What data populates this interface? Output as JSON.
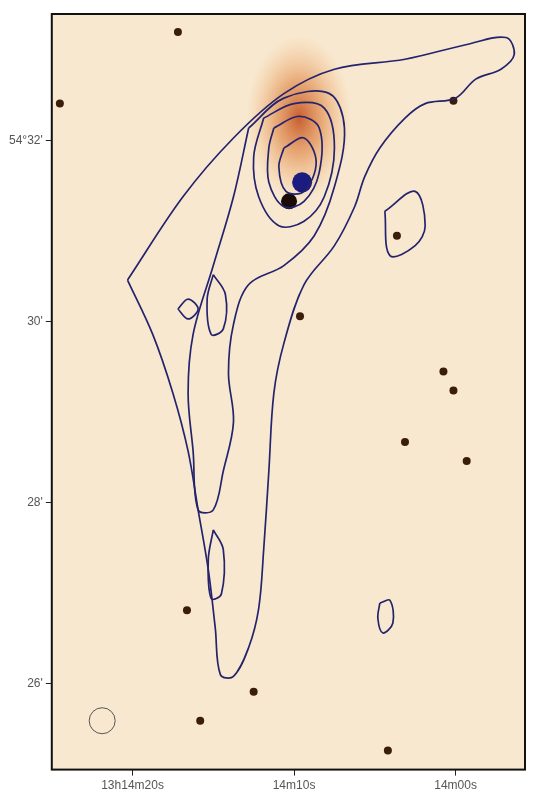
{
  "chart_data": {
    "type": "scatter",
    "xlim": [
      25,
      -4.3
    ],
    "ylim": [
      25.05,
      33.4
    ],
    "xticks": [
      {
        "value": 20,
        "label": "13h14m20s"
      },
      {
        "value": 10,
        "label": "14m10s"
      },
      {
        "value": 0,
        "label": "14m00s"
      }
    ],
    "yticks": [
      {
        "value": 32,
        "label": "54°32'"
      },
      {
        "value": 30,
        "label": "30'"
      },
      {
        "value": 28,
        "label": "28'"
      },
      {
        "value": 26,
        "label": "26'"
      }
    ],
    "grid": false,
    "contours": [
      [
        [
          20.31,
          30.46
        ],
        [
          16.88,
          31.38
        ],
        [
          13.75,
          32.03
        ],
        [
          10.63,
          32.52
        ],
        [
          7.5,
          32.79
        ],
        [
          3.13,
          32.9
        ],
        [
          -0.63,
          33.06
        ],
        [
          -3.13,
          33.14
        ],
        [
          -3.63,
          32.95
        ],
        [
          -2.81,
          32.79
        ],
        [
          -1.25,
          32.68
        ],
        [
          0.0,
          32.47
        ],
        [
          1.88,
          32.41
        ],
        [
          3.13,
          32.25
        ],
        [
          4.69,
          31.92
        ],
        [
          5.63,
          31.6
        ],
        [
          6.25,
          31.27
        ],
        [
          7.5,
          30.84
        ],
        [
          9.38,
          30.41
        ],
        [
          10.63,
          29.76
        ],
        [
          11.25,
          29.21
        ],
        [
          11.56,
          28.35
        ],
        [
          11.88,
          27.48
        ],
        [
          12.19,
          26.83
        ],
        [
          12.81,
          26.4
        ],
        [
          13.75,
          26.08
        ],
        [
          14.56,
          26.1
        ],
        [
          14.88,
          26.62
        ],
        [
          15.31,
          27.26
        ],
        [
          15.94,
          27.92
        ],
        [
          16.56,
          28.57
        ],
        [
          17.5,
          29.21
        ],
        [
          18.75,
          29.86
        ],
        [
          20.31,
          30.46
        ]
      ],
      [
        [
          4.38,
          31.22
        ],
        [
          2.5,
          31.44
        ],
        [
          1.88,
          31.06
        ],
        [
          2.5,
          30.84
        ],
        [
          4.06,
          30.73
        ],
        [
          4.38,
          31.22
        ]
      ],
      [
        [
          17.19,
          30.14
        ],
        [
          16.56,
          30.25
        ],
        [
          15.94,
          30.14
        ],
        [
          16.56,
          30.03
        ],
        [
          17.19,
          30.14
        ]
      ],
      [
        [
          4.69,
          26.89
        ],
        [
          4.06,
          26.92
        ],
        [
          3.88,
          26.67
        ],
        [
          4.5,
          26.56
        ],
        [
          4.81,
          26.72
        ],
        [
          4.69,
          26.89
        ]
      ],
      [
        [
          12.81,
          32.14
        ],
        [
          10.63,
          32.47
        ],
        [
          7.81,
          32.52
        ],
        [
          6.88,
          32.14
        ],
        [
          7.5,
          31.49
        ],
        [
          8.75,
          30.95
        ],
        [
          10.63,
          30.62
        ],
        [
          12.81,
          30.41
        ],
        [
          13.75,
          29.97
        ],
        [
          14.06,
          29.43
        ],
        [
          13.75,
          28.89
        ],
        [
          14.38,
          28.35
        ],
        [
          15.0,
          27.92
        ],
        [
          15.94,
          27.92
        ],
        [
          16.25,
          28.57
        ],
        [
          16.56,
          29.21
        ],
        [
          16.25,
          29.86
        ],
        [
          15.0,
          30.62
        ],
        [
          13.75,
          31.38
        ],
        [
          12.81,
          32.14
        ]
      ],
      [
        [
          11.88,
          32.25
        ],
        [
          10.0,
          32.41
        ],
        [
          8.13,
          32.36
        ],
        [
          7.5,
          31.92
        ],
        [
          8.13,
          31.38
        ],
        [
          9.38,
          31.11
        ],
        [
          10.94,
          31.06
        ],
        [
          12.19,
          31.38
        ],
        [
          12.5,
          31.82
        ],
        [
          11.88,
          32.25
        ]
      ],
      [
        [
          11.25,
          32.14
        ],
        [
          9.69,
          32.27
        ],
        [
          8.44,
          32.14
        ],
        [
          8.44,
          31.65
        ],
        [
          9.38,
          31.33
        ],
        [
          10.63,
          31.27
        ],
        [
          11.56,
          31.54
        ],
        [
          11.56,
          31.92
        ],
        [
          11.25,
          32.14
        ]
      ],
      [
        [
          10.63,
          31.92
        ],
        [
          9.38,
          32.03
        ],
        [
          8.63,
          31.76
        ],
        [
          9.38,
          31.44
        ],
        [
          10.5,
          31.44
        ],
        [
          10.94,
          31.71
        ],
        [
          10.63,
          31.92
        ]
      ],
      [
        [
          15.0,
          30.52
        ],
        [
          14.25,
          30.3
        ],
        [
          14.38,
          29.92
        ],
        [
          15.13,
          29.86
        ],
        [
          15.38,
          30.25
        ],
        [
          15.0,
          30.52
        ]
      ],
      [
        [
          15.0,
          27.7
        ],
        [
          14.38,
          27.48
        ],
        [
          14.5,
          26.99
        ],
        [
          15.13,
          26.94
        ],
        [
          15.31,
          27.37
        ],
        [
          15.0,
          27.7
        ]
      ]
    ],
    "stars": [
      [
        17.19,
        33.2
      ],
      [
        24.5,
        32.41
      ],
      [
        0.13,
        32.44
      ],
      [
        9.63,
        30.06
      ],
      [
        0.75,
        29.45
      ],
      [
        0.13,
        29.24
      ],
      [
        3.13,
        28.67
      ],
      [
        -0.69,
        28.46
      ],
      [
        3.63,
        30.95
      ],
      [
        12.5,
        25.91
      ],
      [
        16.63,
        26.81
      ],
      [
        15.81,
        25.59
      ],
      [
        4.19,
        25.26
      ]
    ],
    "nucleus": [
      10.31,
      31.33
    ],
    "radio_core": [
      9.5,
      31.54
    ],
    "galaxy": [
      9.69,
      32.25
    ],
    "beam": [
      21.88,
      25.59
    ]
  }
}
